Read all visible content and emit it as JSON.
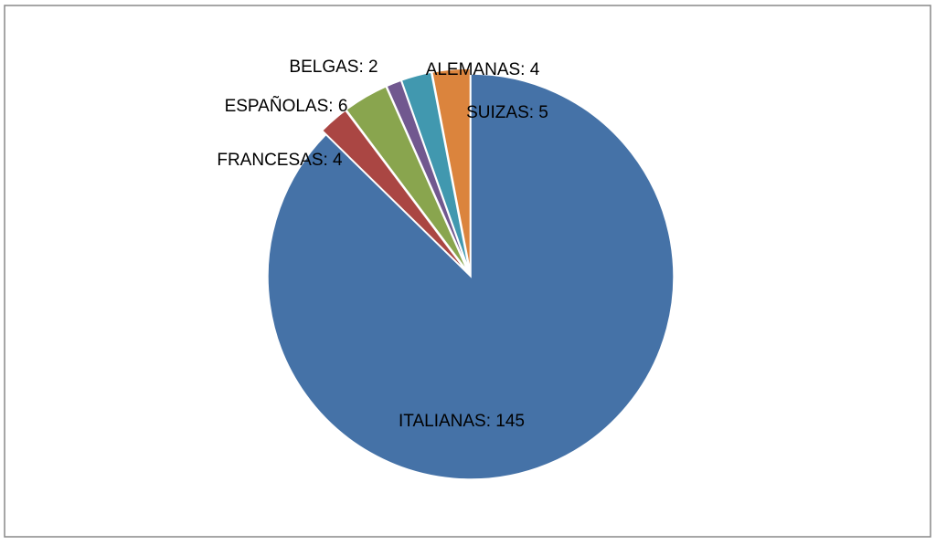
{
  "chart_data": {
    "type": "pie",
    "categories": [
      "ITALIANAS",
      "FRANCESAS",
      "ESPAÑOLAS",
      "BELGAS",
      "ALEMANAS",
      "SUIZAS"
    ],
    "values": [
      145,
      4,
      6,
      2,
      4,
      5
    ],
    "value_labels": [
      "ITALIANAS: 145",
      "FRANCESAS: 4",
      "ESPAÑOLAS: 6",
      "BELGAS: 2",
      "ALEMANAS: 4",
      "SUIZAS: 5"
    ],
    "colors": [
      "#4572A7",
      "#AA4643",
      "#89A54E",
      "#71588F",
      "#4198AF",
      "#DB843D"
    ]
  }
}
